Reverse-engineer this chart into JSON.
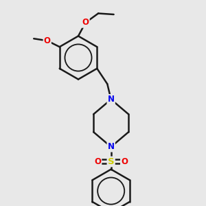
{
  "bg_color": "#e8e8e8",
  "bond_color": "#1a1a1a",
  "bond_width": 1.8,
  "N_color": "#0000ee",
  "O_color": "#ee0000",
  "S_color": "#cccc00",
  "font_size": 8.5,
  "fig_w": 3.0,
  "fig_h": 3.0,
  "dpi": 100,
  "xlim": [
    0,
    10
  ],
  "ylim": [
    0,
    10
  ]
}
